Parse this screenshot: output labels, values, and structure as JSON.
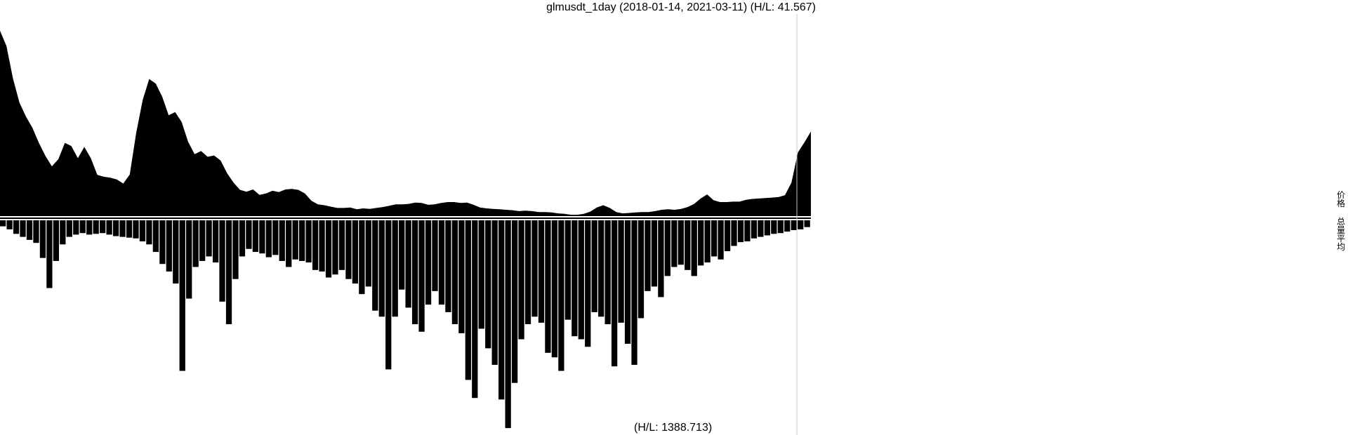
{
  "title": "glmusdt_1day (2018-01-14, 2021-03-11) (H/L: 41.567)",
  "volume_label": "(H/L: 1388.713)",
  "side_labels": {
    "price": "价格",
    "volume": "总量平均"
  },
  "colors": {
    "fill": "#000000",
    "background": "#ffffff",
    "cursor_line": "#c8c8c8"
  },
  "chart_data": [
    {
      "type": "area",
      "panel": "price",
      "x_range": [
        "2018-01-14",
        "2021-03-11"
      ],
      "ylim": [
        0,
        41.567
      ],
      "hl": 41.567,
      "series": [
        {
          "values": [
            41.0,
            37.6,
            30.4,
            25.1,
            22.0,
            19.5,
            16.2,
            13.3,
            11.0,
            12.6,
            16.2,
            15.5,
            12.8,
            15.3,
            12.8,
            9.1,
            8.7,
            8.5,
            8.1,
            7.2,
            9.2,
            18.4,
            25.7,
            30.3,
            29.3,
            26.4,
            22.3,
            23.0,
            20.8,
            16.4,
            13.7,
            14.4,
            13.1,
            13.4,
            12.3,
            9.5,
            7.4,
            5.8,
            5.4,
            5.9,
            4.7,
            5.0,
            5.6,
            5.3,
            5.9,
            6.0,
            5.8,
            5.0,
            3.4,
            2.6,
            2.4,
            2.1,
            1.8,
            1.8,
            1.9,
            1.5,
            1.7,
            1.6,
            1.8,
            2.0,
            2.3,
            2.6,
            2.6,
            2.7,
            3.0,
            2.9,
            2.5,
            2.6,
            2.9,
            3.1,
            3.1,
            2.9,
            3.0,
            2.5,
            1.9,
            1.7,
            1.6,
            1.5,
            1.4,
            1.3,
            1.1,
            1.2,
            1.1,
            0.9,
            0.9,
            0.8,
            0.6,
            0.5,
            0.3,
            0.3,
            0.5,
            1.0,
            1.9,
            2.4,
            1.8,
            0.9,
            0.6,
            0.7,
            0.8,
            0.9,
            0.9,
            1.1,
            1.4,
            1.5,
            1.4,
            1.6,
            2.0,
            2.7,
            3.9,
            4.8,
            3.5,
            3.1,
            3.1,
            3.2,
            3.2,
            3.6,
            3.8,
            3.9,
            4.0,
            4.1,
            4.2,
            4.6,
            7.4,
            14.1,
            16.3,
            18.7
          ]
        }
      ]
    },
    {
      "type": "bar",
      "panel": "volume",
      "orientation": "downward",
      "x_range": [
        "2018-01-14",
        "2021-03-11"
      ],
      "ylim": [
        0,
        1388.713
      ],
      "hl": 1388.713,
      "series": [
        {
          "values": [
            40,
            60,
            90,
            110,
            130,
            150,
            250,
            450,
            270,
            160,
            110,
            95,
            85,
            95,
            90,
            85,
            95,
            105,
            110,
            115,
            120,
            140,
            160,
            210,
            290,
            340,
            420,
            1000,
            520,
            310,
            270,
            240,
            280,
            540,
            690,
            390,
            240,
            190,
            210,
            220,
            245,
            230,
            270,
            310,
            260,
            270,
            280,
            330,
            340,
            380,
            360,
            330,
            390,
            420,
            490,
            440,
            600,
            640,
            990,
            640,
            460,
            580,
            690,
            740,
            560,
            470,
            560,
            610,
            690,
            750,
            1060,
            1180,
            720,
            850,
            960,
            1190,
            1380,
            1080,
            790,
            690,
            640,
            680,
            880,
            910,
            1000,
            660,
            770,
            790,
            840,
            610,
            640,
            690,
            970,
            680,
            820,
            960,
            650,
            470,
            440,
            510,
            370,
            310,
            295,
            330,
            370,
            300,
            280,
            240,
            260,
            205,
            170,
            145,
            140,
            120,
            110,
            100,
            90,
            85,
            75,
            65,
            60,
            45
          ]
        }
      ]
    }
  ]
}
